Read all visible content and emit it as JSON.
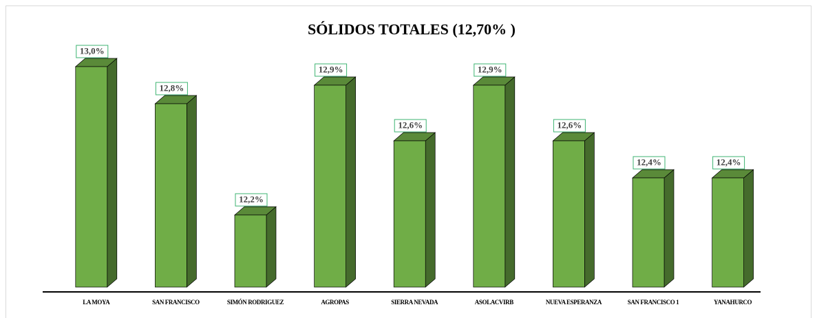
{
  "chart_data": {
    "type": "bar3d",
    "title": "SÓLIDOS TOTALES  (12,70% )",
    "categories": [
      "LA MOYA",
      "SAN FRANCISCO",
      "SIMÓN RODRIGUEZ",
      "AGROPAS",
      "SIERRA NEVADA",
      "ASOLACVIRB",
      "NUEVA ESPERANZA",
      "SAN FRANCISCO 1",
      "YANAHURCO"
    ],
    "values": [
      13.0,
      12.8,
      12.2,
      12.9,
      12.6,
      12.9,
      12.6,
      12.4,
      12.4
    ],
    "value_labels": [
      "13,0%",
      "12,8%",
      "12,2%",
      "12,9%",
      "12,6%",
      "12,9%",
      "12,6%",
      "12,4%",
      "12,4%"
    ],
    "color": "#70ad47"
  }
}
